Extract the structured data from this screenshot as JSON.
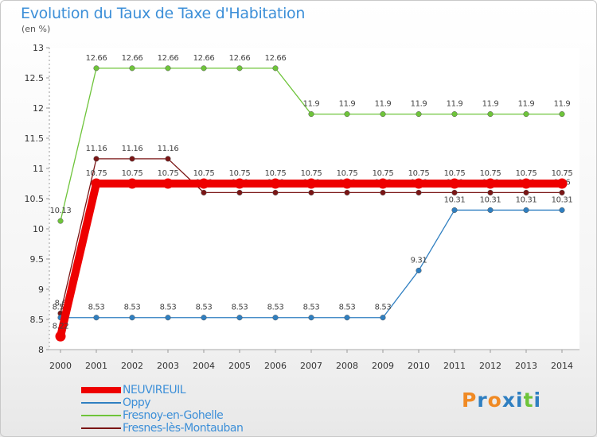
{
  "header": {
    "title": "Evolution du Taux de Taxe d'Habitation",
    "unit": "(en %)"
  },
  "legend": {
    "items": [
      {
        "label": "NEUVIREUIL",
        "color": "#ee0000"
      },
      {
        "label": "Oppy",
        "color": "#2f7fc1"
      },
      {
        "label": "Fresnoy-en-Gohelle",
        "color": "#6ec43a"
      },
      {
        "label": "Fresnes-lès-Montauban",
        "color": "#7a1515"
      }
    ]
  },
  "logo": {
    "text": "Proxiti",
    "letter_colors": [
      "#f08a24",
      "#2f7fc1",
      "#f08a24",
      "#2f7fc1",
      "#2f7fc1",
      "#6ec43a",
      "#2f7fc1"
    ]
  },
  "chart_data": {
    "type": "line",
    "x": [
      2000,
      2001,
      2002,
      2003,
      2004,
      2005,
      2006,
      2007,
      2008,
      2009,
      2010,
      2011,
      2012,
      2013,
      2014
    ],
    "ylim": [
      8,
      13
    ],
    "yticks": [
      8,
      8.5,
      9,
      9.5,
      10,
      10.5,
      11,
      11.5,
      12,
      12.5,
      13
    ],
    "ytick_labels": [
      "8",
      "8.5",
      "9",
      "9.5",
      "10",
      "10.5",
      "11",
      "11.5",
      "12",
      "12.5",
      "13"
    ],
    "grid": false,
    "series": [
      {
        "name": "Fresnes-lès-Montauban",
        "color": "#7a1515",
        "values": [
          8.6,
          11.16,
          11.16,
          11.16,
          10.6,
          10.6,
          10.6,
          10.6,
          10.6,
          10.6,
          10.6,
          10.6,
          10.6,
          10.6,
          10.6
        ],
        "labels": [
          "8.6",
          "11.16",
          "11.16",
          "11.16",
          "10.6",
          "10.6",
          "10.6",
          "10.6",
          "10.6",
          "10.6",
          "10.6",
          "10.6",
          "10.6",
          "10.6",
          "10.6"
        ]
      },
      {
        "name": "Oppy",
        "color": "#2f7fc1",
        "values": [
          8.53,
          8.53,
          8.53,
          8.53,
          8.53,
          8.53,
          8.53,
          8.53,
          8.53,
          8.53,
          9.31,
          10.31,
          10.31,
          10.31,
          10.31
        ],
        "labels": [
          "8.53",
          "8.53",
          "8.53",
          "8.53",
          "8.53",
          "8.53",
          "8.53",
          "8.53",
          "8.53",
          "8.53",
          "9.31",
          "10.31",
          "10.31",
          "10.31",
          "10.31"
        ]
      },
      {
        "name": "Fresnoy-en-Gohelle",
        "color": "#6ec43a",
        "values": [
          10.13,
          12.66,
          12.66,
          12.66,
          12.66,
          12.66,
          12.66,
          11.9,
          11.9,
          11.9,
          11.9,
          11.9,
          11.9,
          11.9,
          11.9
        ],
        "labels": [
          "10.13",
          "12.66",
          "12.66",
          "12.66",
          "12.66",
          "12.66",
          "12.66",
          "11.9",
          "11.9",
          "11.9",
          "11.9",
          "11.9",
          "11.9",
          "11.9",
          "11.9"
        ]
      },
      {
        "name": "NEUVIREUIL",
        "color": "#ee0000",
        "values": [
          8.22,
          10.75,
          10.75,
          10.75,
          10.75,
          10.75,
          10.75,
          10.75,
          10.75,
          10.75,
          10.75,
          10.75,
          10.75,
          10.75,
          10.75
        ],
        "labels": [
          "8.22",
          "10.75",
          "10.75",
          "10.75",
          "10.75",
          "10.75",
          "10.75",
          "10.75",
          "10.75",
          "10.75",
          "10.75",
          "10.75",
          "10.75",
          "10.75",
          "10.75"
        ]
      }
    ]
  }
}
